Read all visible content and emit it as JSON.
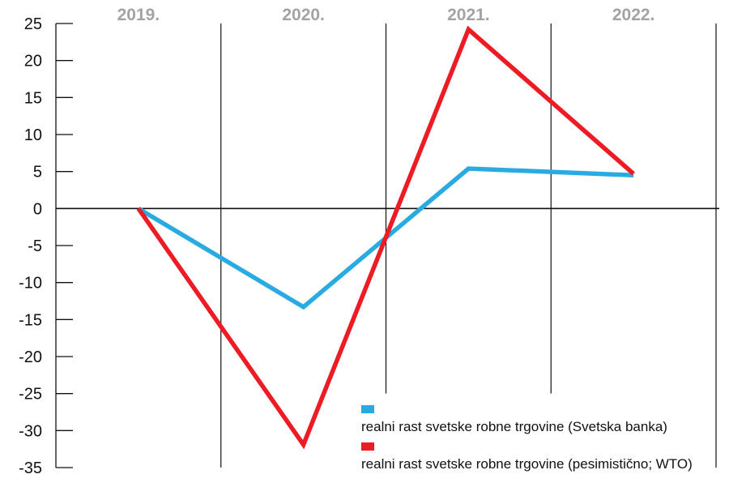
{
  "chart_data": {
    "type": "line",
    "title": "",
    "xlabel": "",
    "ylabel": "",
    "categories": [
      "2019.",
      "2020.",
      "2021.",
      "2022."
    ],
    "series": [
      {
        "name": "realni rast svetske robne trgovine (Svetska banka)",
        "color": "#29abe2",
        "values": [
          0,
          -13.3,
          5.4,
          4.5
        ]
      },
      {
        "name": "realni rast svetske robne trgovine (pesimistično; WTO)",
        "color": "#ed1c24",
        "values": [
          0,
          -31.9,
          24.2,
          4.7
        ]
      }
    ],
    "ylim": [
      -35,
      25
    ],
    "y_ticks": [
      25,
      20,
      15,
      10,
      5,
      0,
      -5,
      -10,
      -15,
      -20,
      -25,
      -30,
      -35
    ],
    "grid": "vertical lines at category boundaries; two middle gridlines shortened above legend",
    "legend_position": "inside bottom-right",
    "category_labels_position": "top, gray, bold"
  },
  "colors": {
    "series_blue": "#29abe2",
    "series_red": "#ed1c24",
    "axis_and_text": "#111111",
    "category_label_gray": "#a1a3a6",
    "background": "#ffffff"
  }
}
